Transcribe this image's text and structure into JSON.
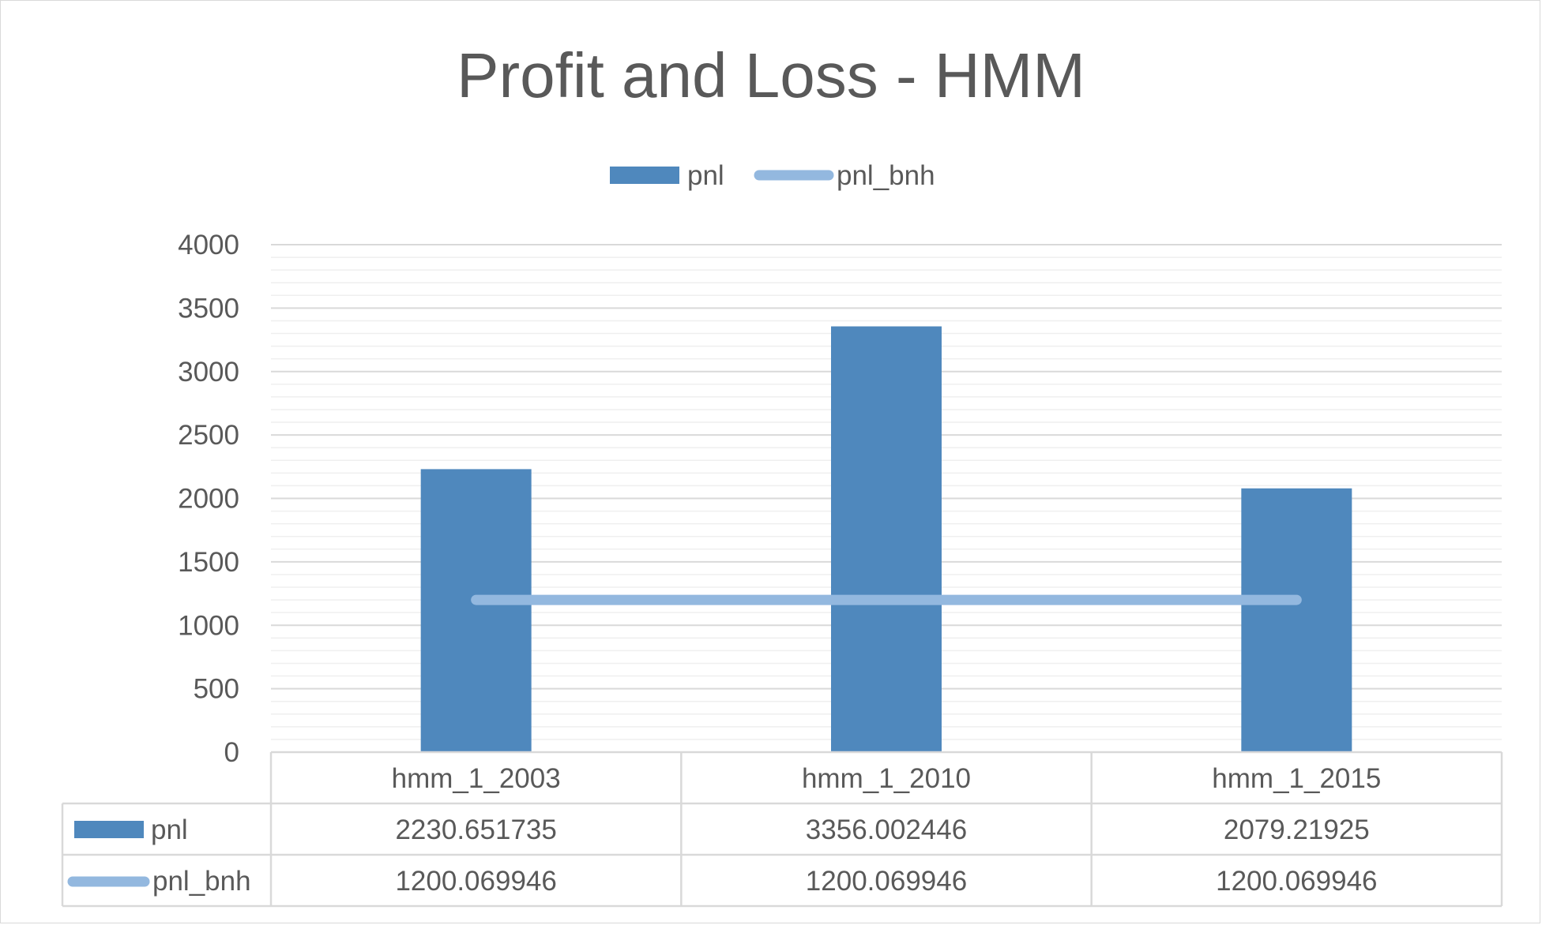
{
  "chart_data": {
    "type": "bar",
    "title": "Profit and Loss - HMM",
    "categories": [
      "hmm_1_2003",
      "hmm_1_2010",
      "hmm_1_2015"
    ],
    "series": [
      {
        "name": "pnl",
        "type": "bar",
        "color": "#4f88bd",
        "values": [
          2230.651735,
          3356.002446,
          2079.21925
        ],
        "labels": [
          "2230.651735",
          "3356.002446",
          "2079.21925"
        ]
      },
      {
        "name": "pnl_bnh",
        "type": "line",
        "color": "#93b8df",
        "values": [
          1200.069946,
          1200.069946,
          1200.069946
        ],
        "labels": [
          "1200.069946",
          "1200.069946",
          "1200.069946"
        ]
      }
    ],
    "ylim": [
      0,
      4000
    ],
    "yticks": [
      "0",
      "500",
      "1000",
      "1500",
      "2000",
      "2500",
      "3000",
      "3500",
      "4000"
    ],
    "grid": true,
    "legend_position": "top-center",
    "data_table": true
  }
}
